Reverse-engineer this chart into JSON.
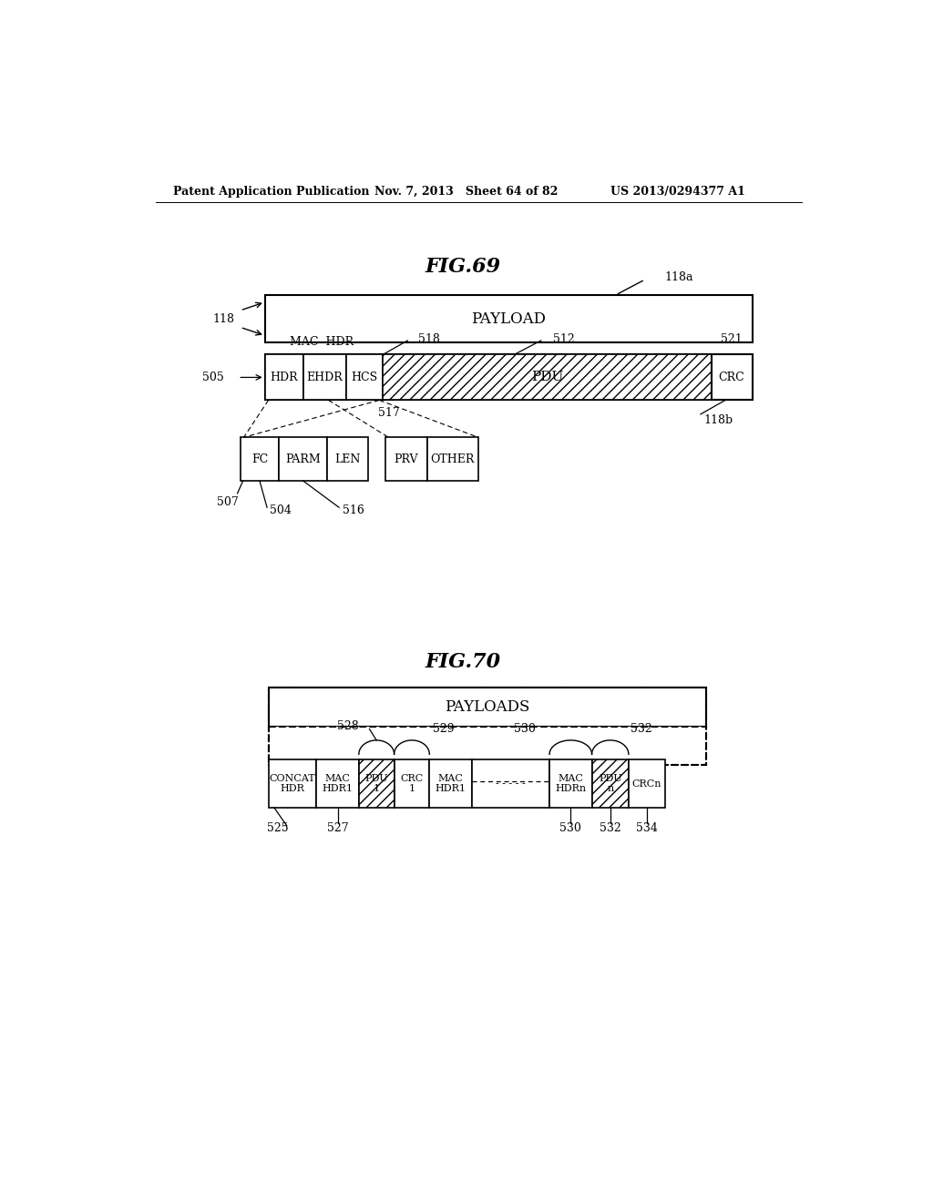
{
  "background_color": "#ffffff",
  "header_left": "Patent Application Publication",
  "header_mid": "Nov. 7, 2013   Sheet 64 of 82",
  "header_right": "US 2013/0294377 A1",
  "fig69_title": "FIG.69",
  "fig70_title": "FIG.70"
}
